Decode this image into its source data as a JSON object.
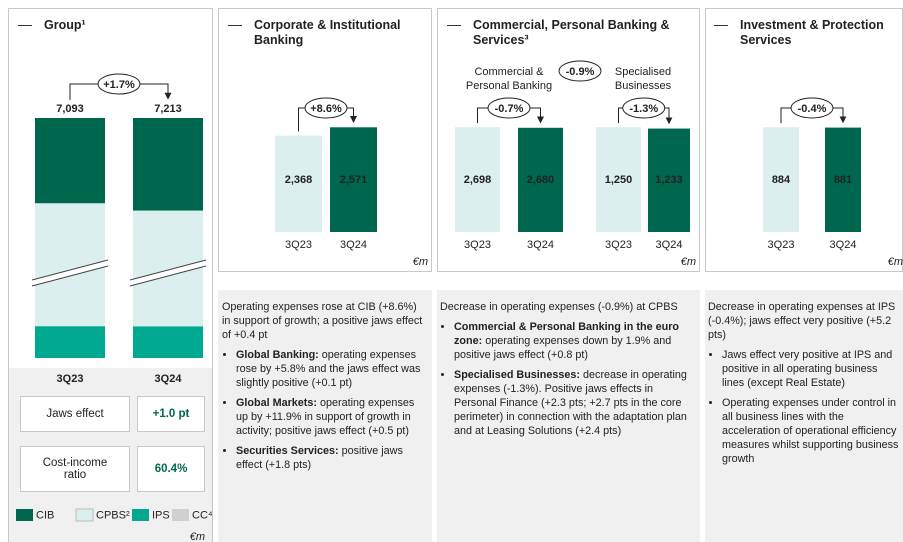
{
  "chart_data": [
    {
      "type": "stacked-bar",
      "title": "Group¹",
      "categories": [
        "3Q23",
        "3Q24"
      ],
      "series": [
        {
          "name": "CIB",
          "color": "#00674f",
          "values": [
            2368,
            2571
          ]
        },
        {
          "name": "CPBS²",
          "color": "#dcefef",
          "values": [
            3948,
            3913
          ]
        },
        {
          "name": "IPS",
          "color": "#00a88f",
          "values": [
            884,
            881
          ]
        },
        {
          "name": "CC⁴",
          "color": "#d0d0d0",
          "values": [
            null,
            null
          ]
        }
      ],
      "totals": [
        7093,
        7213
      ],
      "total_labels": [
        "7,093",
        "7,213"
      ],
      "change": "+1.7%",
      "unit": "€m"
    },
    {
      "type": "bar",
      "categories": [
        "3Q23",
        "3Q24"
      ],
      "values": [
        2368,
        2571
      ],
      "value_labels": [
        "2,368",
        "2,571"
      ],
      "colors": [
        "#dcefef",
        "#00674f"
      ],
      "ylim": [
        0,
        2750
      ],
      "change": "+8.6%"
    },
    {
      "type": "bar",
      "title": "Commercial & Personal Banking",
      "categories": [
        "3Q23",
        "3Q24"
      ],
      "values": [
        2698,
        2680
      ],
      "value_labels": [
        "2,698",
        "2,680"
      ],
      "colors": [
        "#dcefef",
        "#00674f"
      ],
      "ylim": [
        0,
        2880
      ],
      "change": "-0.7%"
    },
    {
      "type": "bar",
      "title": "Specialised Businesses",
      "categories": [
        "3Q23",
        "3Q24"
      ],
      "values": [
        1250,
        1233
      ],
      "value_labels": [
        "1,250",
        "1,233"
      ],
      "colors": [
        "#dcefef",
        "#00674f"
      ],
      "ylim": [
        0,
        1335
      ],
      "change": "-1.3%"
    },
    {
      "type": "bar",
      "categories": [
        "3Q23",
        "3Q24"
      ],
      "values": [
        884,
        881
      ],
      "value_labels": [
        "884",
        "881"
      ],
      "colors": [
        "#dcefef",
        "#00674f"
      ],
      "ylim": [
        0,
        945
      ],
      "change": "-0.4%"
    }
  ],
  "panels": [
    {
      "title": "Corporate & Institutional Banking",
      "unit": "€m"
    },
    {
      "title": "Commercial, Personal Banking & Services³",
      "unit": "€m",
      "change": "-0.9%"
    },
    {
      "title": "Investment & Protection Services",
      "unit": "€m"
    }
  ],
  "kpis": [
    {
      "label": "Jaws effect",
      "value": "+1.0 pt"
    },
    {
      "label": "Cost-income ratio",
      "value": "60.4%"
    }
  ],
  "commentary": [
    {
      "intro": "Operating expenses rose at CIB (+8.6%) in support of growth; a positive jaws effect of +0.4 pt",
      "bullets": [
        {
          "bold": "Global Banking:",
          "text": "operating expenses rose by +5.8% and the jaws effect was slightly positive (+0.1 pt)"
        },
        {
          "bold": "Global Markets:",
          "text": "operating expenses up by +11.9% in support of growth in activity; positive jaws effect (+0.5 pt)"
        },
        {
          "bold": "Securities Services:",
          "text": "positive jaws effect (+1.8 pts)"
        }
      ]
    },
    {
      "intro": "Decrease in operating expenses (-0.9%) at CPBS",
      "bullets": [
        {
          "bold": "Commercial & Personal Banking in the euro zone:",
          "text": "operating expenses down by 1.9% and positive jaws effect (+0.8 pt)"
        },
        {
          "bold": "Specialised Businesses:",
          "text": "decrease in operating expenses (-1.3%). Positive jaws effects in Personal Finance (+2.3 pts; +2.7 pts in the core perimeter) in connection with the adaptation plan and at Leasing Solutions (+2.4 pts)"
        }
      ]
    },
    {
      "intro": "Decrease in operating expenses at IPS (-0.4%); jaws effect very positive (+5.2 pts)",
      "bullets": [
        {
          "text": "Jaws effect very positive at IPS and positive in all operating business lines (except Real Estate)"
        },
        {
          "text": "Operating expenses under control in all business lines with the acceleration of operational efficiency measures whilst supporting business growth"
        }
      ]
    }
  ]
}
